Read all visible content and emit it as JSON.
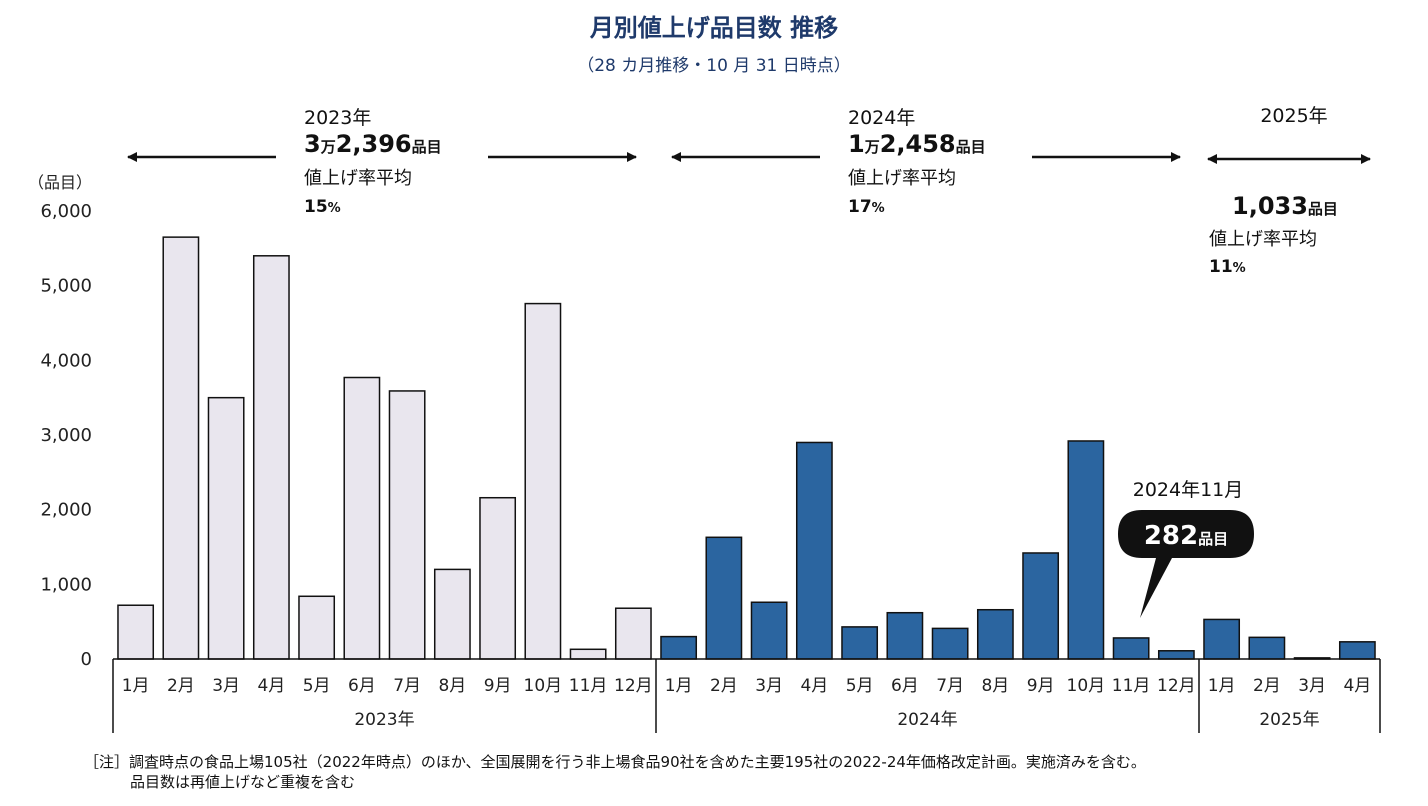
{
  "title": "月別値上げ品目数 推移",
  "subtitle": "（28 カ月推移・10 月 31 日時点）",
  "note": {
    "label": "［注］",
    "line1": "調査時点の食品上場105社（2022年時点）のほか、全国展開を行う非上場食品90社を含めた主要195社の2022-24年価格改定計画。実施済みを含む。",
    "line2": "品目数は再値上げなど重複を含む"
  },
  "colors": {
    "y2023": "#e9e6ee",
    "y2024": "#2b65a0",
    "stroke": "#111111",
    "callout": "#111111"
  },
  "chart_data": {
    "type": "bar",
    "ylabel": "（品目）",
    "ylim": [
      0,
      6000
    ],
    "yticks": [
      0,
      1000,
      2000,
      3000,
      4000,
      5000,
      6000
    ],
    "ytick_labels": [
      "0",
      "1,000",
      "2,000",
      "3,000",
      "4,000",
      "5,000",
      "6,000"
    ],
    "categories": [
      "1月",
      "2月",
      "3月",
      "4月",
      "5月",
      "6月",
      "7月",
      "8月",
      "9月",
      "10月",
      "11月",
      "12月",
      "1月",
      "2月",
      "3月",
      "4月",
      "5月",
      "6月",
      "7月",
      "8月",
      "9月",
      "10月",
      "11月",
      "12月",
      "1月",
      "2月",
      "3月",
      "4月"
    ],
    "years": [
      "2023年",
      "2024年",
      "2025年"
    ],
    "values": [
      720,
      5650,
      3500,
      5400,
      840,
      3770,
      3590,
      1200,
      2160,
      4760,
      130,
      680,
      300,
      1630,
      760,
      2900,
      430,
      620,
      410,
      660,
      1420,
      2920,
      282,
      110,
      530,
      290,
      15,
      230
    ],
    "groups": [
      {
        "year": "2023年",
        "start": 0,
        "count": 12
      },
      {
        "year": "2024年",
        "start": 12,
        "count": 12
      },
      {
        "year": "2025年",
        "start": 24,
        "count": 4
      }
    ],
    "annotations": [
      {
        "year": "2023年",
        "prefix": "3",
        "man": "万",
        "rest": "2,396",
        "unit": "品目",
        "rate_label": "値上げ率平均",
        "rate_value": "15",
        "rate_unit": "%"
      },
      {
        "year": "2024年",
        "prefix": "1",
        "man": "万",
        "rest": "2,458",
        "unit": "品目",
        "rate_label": "値上げ率平均",
        "rate_value": "17",
        "rate_unit": "%"
      },
      {
        "year": "2025年",
        "prefix": "",
        "man": "",
        "rest": "1,033",
        "unit": "品目",
        "rate_label": "値上げ率平均",
        "rate_value": "11",
        "rate_unit": "%"
      }
    ],
    "callout": {
      "label": "2024年11月",
      "value": "282",
      "unit": "品目",
      "index": 22
    }
  }
}
